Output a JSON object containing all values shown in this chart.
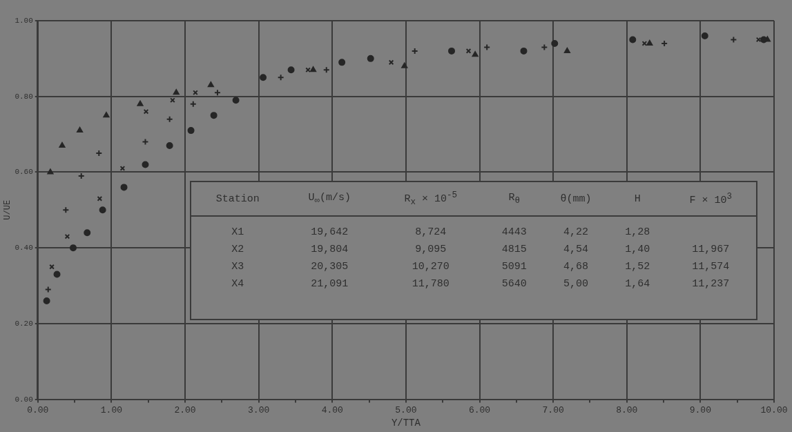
{
  "chart_data": {
    "type": "scatter",
    "xlabel": "Y/TTA",
    "ylabel": "U/UE",
    "xlim": [
      0,
      10
    ],
    "ylim": [
      0,
      1
    ],
    "xticks": [
      {
        "value": 0,
        "label": "0.00"
      },
      {
        "value": 0.5,
        "label": null
      },
      {
        "value": 1,
        "label": "1.00"
      },
      {
        "value": 1.5,
        "label": null
      },
      {
        "value": 2,
        "label": "2.00"
      },
      {
        "value": 2.5,
        "label": null
      },
      {
        "value": 3,
        "label": "3.00"
      },
      {
        "value": 3.5,
        "label": null
      },
      {
        "value": 4,
        "label": "4.00"
      },
      {
        "value": 4.5,
        "label": null
      },
      {
        "value": 5,
        "label": "5.00"
      },
      {
        "value": 5.5,
        "label": null
      },
      {
        "value": 6,
        "label": "6.00"
      },
      {
        "value": 6.5,
        "label": null
      },
      {
        "value": 7,
        "label": "7.00"
      },
      {
        "value": 7.5,
        "label": null
      },
      {
        "value": 8,
        "label": "8.00"
      },
      {
        "value": 8.5,
        "label": null
      },
      {
        "value": 9,
        "label": "9.00"
      },
      {
        "value": 9.5,
        "label": null
      },
      {
        "value": 10,
        "label": "10.00"
      }
    ],
    "yticks": [
      {
        "value": 0,
        "label": "0.00"
      },
      {
        "value": 0.2,
        "label": "0.20"
      },
      {
        "value": 0.4,
        "label": "0.40"
      },
      {
        "value": 0.6,
        "label": "0.60"
      },
      {
        "value": 0.8,
        "label": "0.80"
      },
      {
        "value": 1,
        "label": "1.00"
      }
    ],
    "grid": true,
    "legend": false,
    "series": [
      {
        "color": "#262626",
        "marker": "circle",
        "x": [
          0.12,
          0.26,
          0.48,
          0.67,
          0.88,
          1.17,
          1.46,
          1.79,
          2.08,
          2.39,
          2.69,
          3.06,
          3.44,
          4.13,
          4.52,
          5.62,
          6.6,
          7.02,
          8.08,
          9.06,
          9.86
        ],
        "values": [
          0.26,
          0.33,
          0.4,
          0.44,
          0.5,
          0.56,
          0.62,
          0.67,
          0.71,
          0.75,
          0.79,
          0.85,
          0.87,
          0.89,
          0.9,
          0.92,
          0.92,
          0.94,
          0.95,
          0.96,
          0.95
        ]
      },
      {
        "color": "#262626",
        "marker": "plus",
        "x": [
          0.14,
          0.38,
          0.59,
          0.83,
          1.46,
          1.79,
          2.11,
          2.44,
          3.3,
          3.92,
          5.12,
          6.1,
          6.88,
          8.51,
          9.45
        ],
        "values": [
          0.29,
          0.5,
          0.59,
          0.65,
          0.68,
          0.74,
          0.78,
          0.81,
          0.85,
          0.87,
          0.92,
          0.93,
          0.93,
          0.94,
          0.95
        ]
      },
      {
        "color": "#262626",
        "marker": "cross",
        "x": [
          0.19,
          0.4,
          0.84,
          1.15,
          1.47,
          1.83,
          2.14,
          3.67,
          4.8,
          5.85,
          8.24,
          9.79
        ],
        "values": [
          0.35,
          0.43,
          0.53,
          0.61,
          0.76,
          0.79,
          0.81,
          0.87,
          0.89,
          0.92,
          0.94,
          0.95
        ]
      },
      {
        "color": "#262626",
        "marker": "triangle",
        "x": [
          0.17,
          0.33,
          0.57,
          0.93,
          1.39,
          1.88,
          2.35,
          3.74,
          4.98,
          5.94,
          7.19,
          8.31,
          9.91
        ],
        "values": [
          0.6,
          0.67,
          0.71,
          0.75,
          0.78,
          0.81,
          0.83,
          0.87,
          0.88,
          0.91,
          0.92,
          0.94,
          0.95
        ]
      }
    ],
    "annotations": [
      "Station\tU$_{∞}$(m/s)\tR$_{x}$ × 10$^{-5}$\tR$_{θ}$\tθ(mm)\tH\tF × 10$^{3}$",
      "X1\t19,642\t8,724\t4443\t4,22\t1,28\t",
      "X2\t19,804\t9,095\t4815\t4,54\t1,40\t11,967",
      "X3\t20,305\t10,270\t5091\t4,68\t1,52\t11,574",
      "X4\t21,091\t11,780\t5640\t5,00\t1,64\t11,237"
    ]
  }
}
